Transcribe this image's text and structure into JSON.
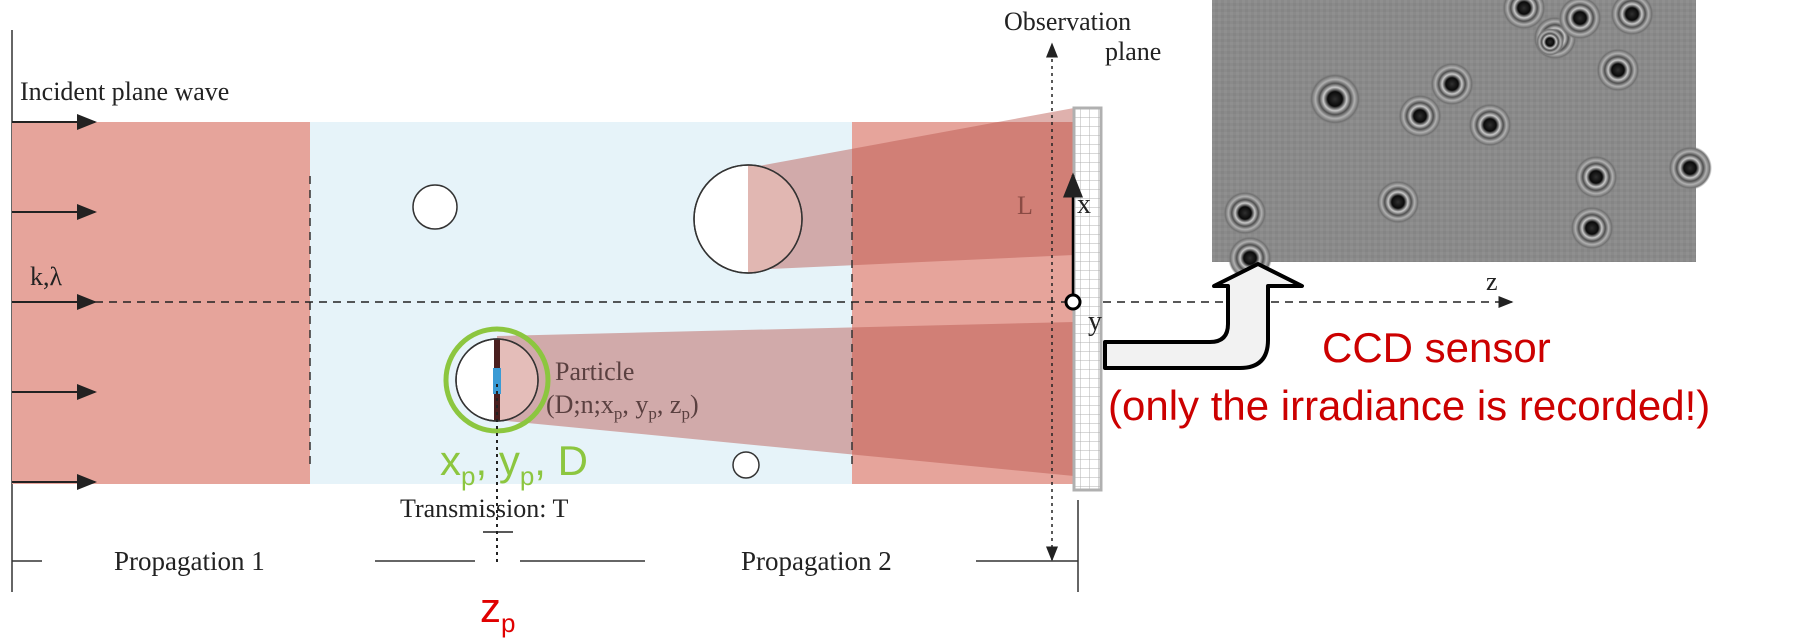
{
  "labels": {
    "incident_wave": "Incident plane wave",
    "k_lambda": "k,λ",
    "observation_plane_line1": "Observation",
    "observation_plane_line2": "plane",
    "L": "L",
    "x_axis": "x",
    "y_axis": "y",
    "z_axis": "z",
    "particle_line1": "Particle",
    "particle_line2_prefix": "(D;n;x",
    "particle_line2_y": ", y",
    "particle_line2_z": ", z",
    "particle_line2_suffix": ")",
    "sub_p": "p",
    "transmission": "Transmission: T",
    "propagation1": "Propagation 1",
    "propagation2": "Propagation 2",
    "zp_main": "z",
    "zp_sub": "p",
    "xp_main": "x",
    "yp_main": "y",
    "D_label": ", D",
    "comma": ", ",
    "ccd_sensor": "CCD sensor",
    "ccd_note": "(only the irradiance is recorded!)"
  },
  "colors": {
    "wave_red": "#e6a49b",
    "wave_red_dark": "#c9796e",
    "light_blue": "#e6f3f9",
    "green_accent": "#8cc63f",
    "red_text": "#cc0000",
    "hologram_bg": "#8a8a8a"
  },
  "icons": {
    "arrow": "block-arrow-icon"
  }
}
